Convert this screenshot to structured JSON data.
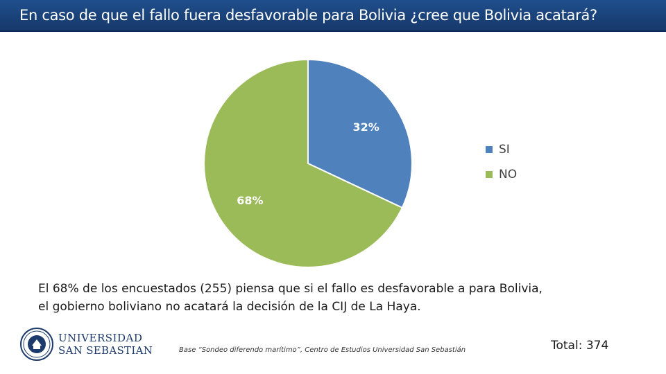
{
  "header": {
    "title": "En caso de que el fallo fuera desfavorable para Bolivia ¿cree que Bolivia acatará?"
  },
  "chart_data": {
    "type": "pie",
    "title": "",
    "categories": [
      "SI",
      "NO"
    ],
    "values": [
      32,
      68
    ],
    "labels": [
      "32%",
      "68%"
    ],
    "colors": [
      "#4f81bd",
      "#9bbb59"
    ],
    "legend_position": "right"
  },
  "summary": {
    "line1": "El 68% de los encuestados (255) piensa que si el fallo es desfavorable a para Bolivia,",
    "line2": "el gobierno boliviano no acatará la decisión de la CIJ de La Haya."
  },
  "footer": {
    "logo_line1": "UNIVERSIDAD",
    "logo_line2": "SAN SEBASTIAN",
    "source": "Base “Sondeo diferendo marítimo”, Centro de Estudios Universidad San Sebastián",
    "total": "Total: 374"
  },
  "icons": {
    "logo": "university-seal-icon"
  }
}
